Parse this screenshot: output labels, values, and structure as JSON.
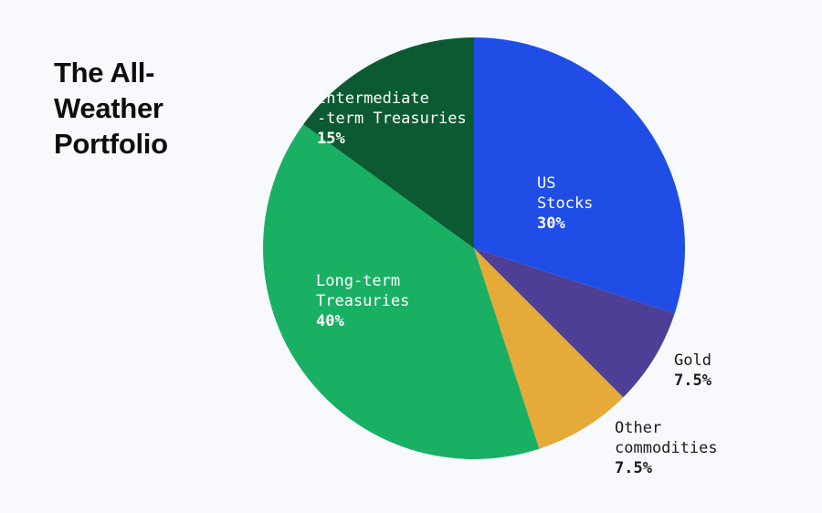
{
  "title_lines": [
    "The All-",
    "Weather",
    "Portfolio"
  ],
  "chart_data": {
    "type": "pie",
    "title": "The All-Weather Portfolio",
    "start_angle": "12 o'clock",
    "direction": "clockwise",
    "slices": [
      {
        "label": "US Stocks",
        "value": 30,
        "display": "30%",
        "color": "#1f4de6"
      },
      {
        "label": "Gold",
        "value": 7.5,
        "display": "7.5%",
        "color": "#4e3f96"
      },
      {
        "label": "Other commodities",
        "value": 7.5,
        "display": "7.5%",
        "color": "#e5aa38"
      },
      {
        "label": "Long-term Treasuries",
        "value": 40,
        "display": "40%",
        "color": "#19b064"
      },
      {
        "label": "Intermediate-term Treasuries",
        "value": 15,
        "display": "15%",
        "color": "#0b5a32"
      }
    ]
  },
  "labels": {
    "us_stocks": {
      "lines": [
        "US",
        "Stocks"
      ],
      "pct": "30%"
    },
    "gold": {
      "lines": [
        "Gold"
      ],
      "pct": "7.5%"
    },
    "commodities": {
      "lines": [
        "Other",
        "commodities"
      ],
      "pct": "7.5%"
    },
    "long_term": {
      "lines": [
        "Long-term",
        "Treasuries"
      ],
      "pct": "40%"
    },
    "intermediate": {
      "lines": [
        "Intermediate",
        "-term Treasuries"
      ],
      "pct": "15%"
    }
  }
}
